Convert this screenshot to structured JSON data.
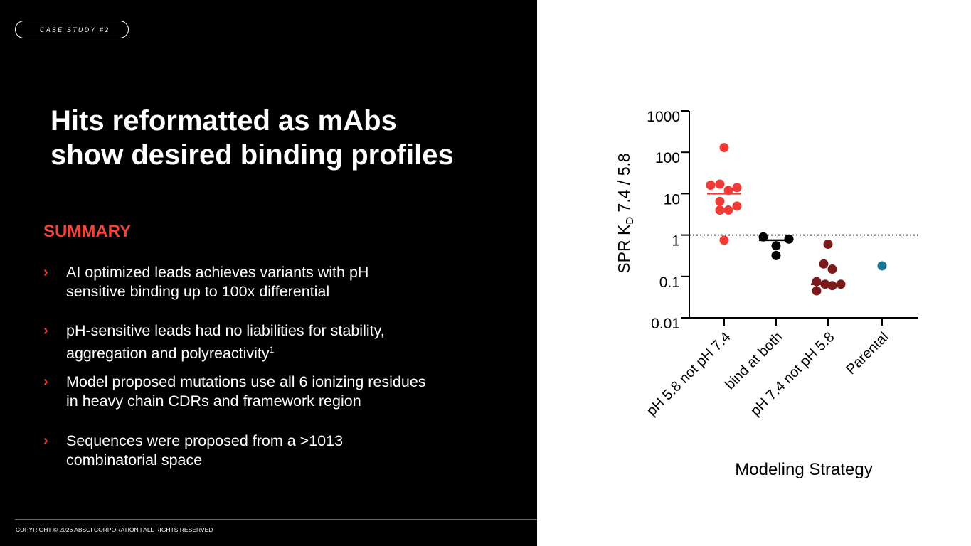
{
  "slide": {
    "tag": "CASE STUDY #2",
    "title_line1": "Hits reformatted as mAbs",
    "title_line2": "show desired binding profiles",
    "summary_heading": "SUMMARY",
    "bullets": [
      {
        "line1": "AI optimized leads achieves variants with pH",
        "line2": "sensitive binding up to 100x differential",
        "sup": ""
      },
      {
        "line1": "pH-sensitive leads had no liabilities for stability,",
        "line2": "aggregation and polyreactivity",
        "sup": "1"
      },
      {
        "line1": "Model proposed mutations use all 6 ionizing residues",
        "line2": "in heavy chain CDRs and framework region",
        "sup": ""
      },
      {
        "line1": "Sequences were proposed from a >1013",
        "line2": "combinatorial space",
        "sup": ""
      }
    ],
    "bullet_marker": "›",
    "copyright": "COPYRIGHT © 2026 ABSCI CORPORATION | ALL RIGHTS RESERVED"
  },
  "colors": {
    "accent": "#f0443b",
    "series_ph58": "#ef3b36",
    "series_both": "#000000",
    "series_ph74": "#7b1a1a",
    "series_parental": "#1a7394"
  },
  "chart_data": {
    "type": "scatter",
    "title": "",
    "ylabel_prefix": "SPR K",
    "ylabel_sub": "D",
    "ylabel_suffix": " 7.4 / 5.8",
    "xlabel": "Modeling Strategy",
    "yscale": "log",
    "ylim": [
      0.01,
      1000
    ],
    "yticks": [
      {
        "value": 1000,
        "label": "1000"
      },
      {
        "value": 100,
        "label": "100"
      },
      {
        "value": 10,
        "label": "10"
      },
      {
        "value": 1,
        "label": "1"
      },
      {
        "value": 0.1,
        "label": "0.1"
      },
      {
        "value": 0.01,
        "label": "0.01"
      }
    ],
    "reference_line": 1,
    "categories": [
      "pH 5.8 not pH 7.4",
      "bind at both",
      "pH 7.4 not pH 5.8",
      "Parental"
    ],
    "series": [
      {
        "category": "pH 5.8 not pH 7.4",
        "color": "#ef3b36",
        "median": 10,
        "values": [
          130,
          16,
          14,
          17,
          12,
          6.5,
          4,
          4,
          5,
          0.75
        ]
      },
      {
        "category": "bind at both",
        "color": "#000000",
        "median": 0.75,
        "values": [
          0.9,
          0.55,
          0.32,
          0.8
        ]
      },
      {
        "category": "pH 7.4 not pH 5.8",
        "color": "#7b1a1a",
        "median": 0.065,
        "values": [
          0.6,
          0.2,
          0.15,
          0.075,
          0.065,
          0.06,
          0.065,
          0.045
        ]
      },
      {
        "category": "Parental",
        "color": "#1a7394",
        "median": null,
        "values": [
          0.18
        ]
      }
    ]
  }
}
